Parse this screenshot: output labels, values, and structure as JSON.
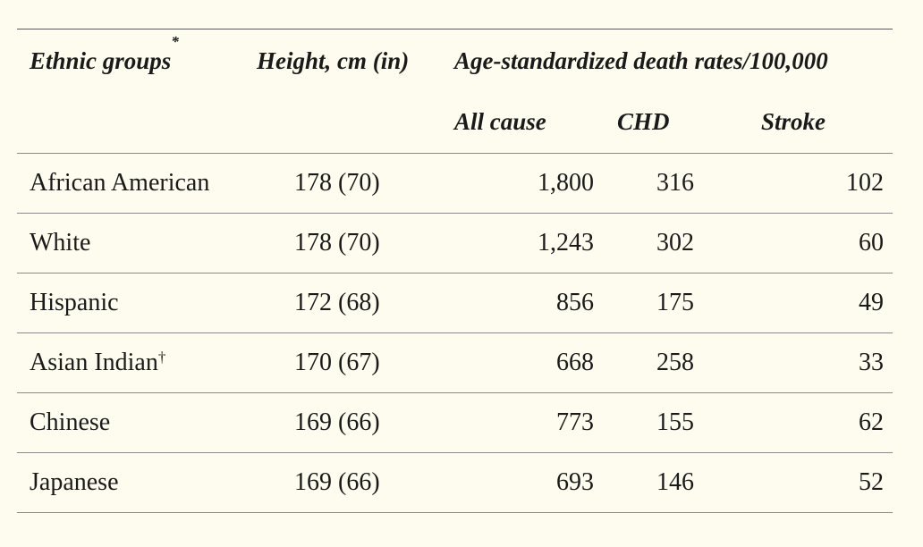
{
  "table": {
    "headers": {
      "ethnic_groups": "Ethnic groups",
      "ethnic_groups_mark": "*",
      "height": "Height, cm (in)",
      "rates": "Age-standardized death rates/100,000",
      "all_cause": "All cause",
      "chd": "CHD",
      "stroke": "Stroke"
    },
    "rows": [
      {
        "group": "African American",
        "mark": "",
        "height": "178 (70)",
        "all_cause": "1,800",
        "chd": "316",
        "stroke": "102"
      },
      {
        "group": "White",
        "mark": "",
        "height": "178 (70)",
        "all_cause": "1,243",
        "chd": "302",
        "stroke": "60"
      },
      {
        "group": "Hispanic",
        "mark": "",
        "height": "172 (68)",
        "all_cause": "856",
        "chd": "175",
        "stroke": "49"
      },
      {
        "group": "Asian Indian",
        "mark": "†",
        "height": "170 (67)",
        "all_cause": "668",
        "chd": "258",
        "stroke": "33"
      },
      {
        "group": "Chinese",
        "mark": "",
        "height": "169 (66)",
        "all_cause": "773",
        "chd": "155",
        "stroke": "62"
      },
      {
        "group": "Japanese",
        "mark": "",
        "height": "169 (66)",
        "all_cause": "693",
        "chd": "146",
        "stroke": "52"
      }
    ]
  }
}
